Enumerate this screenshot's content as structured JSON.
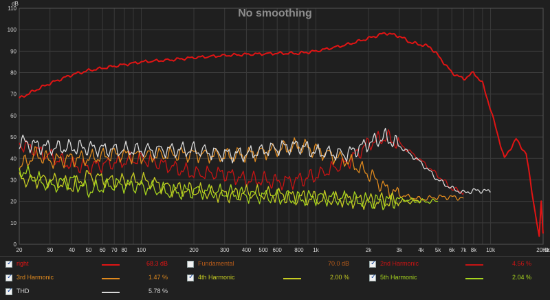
{
  "chart_data": {
    "type": "line",
    "title": "No smoothing",
    "yunit": "dB",
    "xunit": "Hz",
    "xscale": "log",
    "xlim": [
      20,
      20000
    ],
    "ylim": [
      0,
      110
    ],
    "grid": true,
    "ytick_labels": [
      "0",
      "10",
      "20",
      "30",
      "40",
      "50",
      "60",
      "70",
      "80",
      "90",
      "100",
      "110"
    ],
    "ytick_values": [
      0,
      10,
      20,
      30,
      40,
      50,
      60,
      70,
      80,
      90,
      100,
      110
    ],
    "xtick_labels": [
      "20",
      "30",
      "40",
      "50",
      "60",
      "70",
      "80",
      "100",
      "200",
      "300",
      "400",
      "500",
      "600",
      "800",
      "1k",
      "2k",
      "3k",
      "4k",
      "5k",
      "6k",
      "7k",
      "8k",
      "10k",
      "20.0k"
    ],
    "xtick_values": [
      20,
      30,
      40,
      50,
      60,
      70,
      80,
      100,
      200,
      300,
      400,
      500,
      600,
      800,
      1000,
      2000,
      3000,
      4000,
      5000,
      6000,
      7000,
      8000,
      10000,
      20000
    ],
    "series": [
      {
        "name": "right",
        "color": "#e11414",
        "x": [
          20,
          25,
          30,
          40,
          50,
          70,
          100,
          150,
          200,
          300,
          400,
          600,
          800,
          1000,
          1500,
          2000,
          2500,
          3000,
          3500,
          4000,
          4500,
          5000,
          6000,
          7000,
          8000,
          9000,
          10000,
          12000,
          14000,
          16000,
          18000,
          19000,
          19500,
          20000
        ],
        "y": [
          68,
          72,
          75,
          79,
          81,
          83,
          85,
          86,
          87,
          88,
          88.5,
          89,
          89,
          90,
          93,
          96,
          98.5,
          97,
          94,
          93,
          92,
          88,
          80,
          77,
          80,
          75,
          63,
          40,
          49,
          42,
          15,
          3,
          20,
          5
        ]
      },
      {
        "name": "2nd Harmonic",
        "color": "#c81414",
        "x": [
          20,
          30,
          40,
          50,
          70,
          100,
          150,
          200,
          300,
          400,
          500,
          600,
          800,
          1000,
          1500,
          2000,
          2500,
          3000,
          4000,
          5000,
          6000,
          7000
        ],
        "y": [
          47,
          41,
          37,
          36,
          38,
          40,
          36,
          33,
          33,
          30,
          30,
          29,
          30,
          32,
          38,
          47,
          50,
          47,
          39,
          32,
          26,
          24
        ]
      },
      {
        "name": "3rd Harmonic",
        "color": "#e08a1e",
        "x": [
          20,
          25,
          30,
          40,
          50,
          70,
          100,
          150,
          200,
          300,
          400,
          600,
          800,
          1000,
          1500,
          2000,
          2500,
          3000,
          4000,
          5000,
          6000,
          7000
        ],
        "y": [
          36,
          42,
          39,
          40,
          40,
          42,
          41,
          42,
          42,
          41,
          42,
          44,
          46,
          44,
          39,
          33,
          26,
          23,
          21,
          22,
          22,
          21.5
        ]
      },
      {
        "name": "4th Harmonic",
        "color": "#c6cc22",
        "x": [
          20,
          30,
          40,
          50,
          70,
          100,
          150,
          200,
          300,
          400,
          600,
          800,
          1000,
          1500,
          2000,
          2500,
          3000,
          4000
        ],
        "y": [
          30,
          30,
          27,
          32,
          29,
          30,
          26,
          25,
          23,
          24,
          23,
          22,
          21,
          21,
          20,
          20,
          20,
          20
        ]
      },
      {
        "name": "5th Harmonic",
        "color": "#a6d41e",
        "x": [
          20,
          30,
          40,
          50,
          70,
          100,
          150,
          200,
          300,
          400,
          600,
          800,
          1000,
          1500,
          2000,
          2500,
          3000,
          4000,
          5000
        ],
        "y": [
          35,
          27,
          30,
          25,
          28,
          27,
          24,
          25,
          24,
          23,
          22,
          21,
          22,
          21,
          20,
          20,
          21,
          20,
          20
        ]
      },
      {
        "name": "THD",
        "color": "#d8d8d8",
        "x": [
          20,
          25,
          30,
          40,
          50,
          70,
          100,
          150,
          200,
          300,
          400,
          600,
          800,
          1000,
          1500,
          2000,
          2500,
          3000,
          4000,
          5000,
          6000,
          7000,
          8000,
          9000,
          10000
        ],
        "y": [
          48,
          46,
          45,
          45,
          45,
          44,
          44,
          44,
          44,
          42,
          42,
          45,
          46,
          43,
          42,
          47,
          50,
          46,
          38,
          30,
          26,
          24,
          25,
          25,
          24.5
        ]
      }
    ]
  },
  "legend": [
    {
      "label": "right",
      "checked": true,
      "label_color": "#e11414",
      "swatch": "#e11414",
      "value": "68.3 dB",
      "value_color": "#e11414"
    },
    {
      "label": "Fundamental",
      "checked": false,
      "label_color": "#b85c1a",
      "swatch": "",
      "value": "70.0 dB",
      "value_color": "#b85c1a"
    },
    {
      "label": "2nd Harmonic",
      "checked": true,
      "label_color": "#c81414",
      "swatch": "#c81414",
      "value": "4.56 %",
      "value_color": "#c81414"
    },
    {
      "label": "3rd Harmonic",
      "checked": true,
      "label_color": "#e08a1e",
      "swatch": "#e08a1e",
      "value": "1.47 %",
      "value_color": "#e08a1e"
    },
    {
      "label": "4th Harmonic",
      "checked": true,
      "label_color": "#c6cc22",
      "swatch": "#c6cc22",
      "value": "2.00 %",
      "value_color": "#c6cc22"
    },
    {
      "label": "5th Harmonic",
      "checked": true,
      "label_color": "#a6d41e",
      "swatch": "#a6d41e",
      "value": "2.04 %",
      "value_color": "#a6d41e"
    },
    {
      "label": "THD",
      "checked": true,
      "label_color": "#d8d8d8",
      "swatch": "#d8d8d8",
      "value": "5.78 %",
      "value_color": "#d8d8d8"
    }
  ],
  "checkmark_glyph": "✓"
}
